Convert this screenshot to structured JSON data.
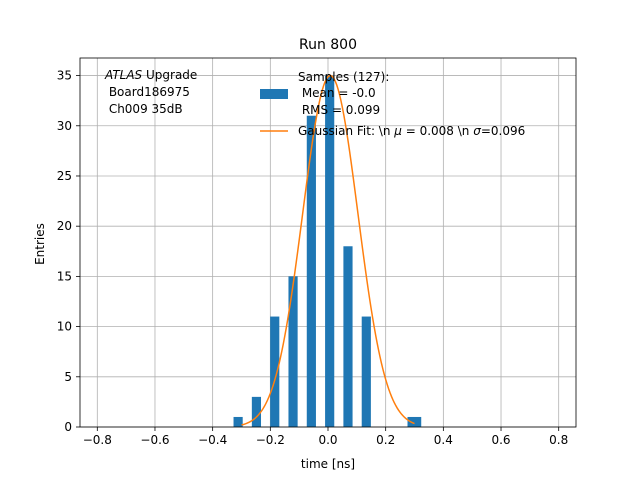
{
  "chart_data": {
    "type": "bar",
    "title": "Run 800",
    "xlabel": "time [ns]",
    "ylabel": "Entries",
    "xlim": [
      -0.86,
      0.86
    ],
    "ylim": [
      0,
      36.75
    ],
    "grid": true,
    "xticks": [
      -0.8,
      -0.6,
      -0.4,
      -0.2,
      0.0,
      0.2,
      0.4,
      0.6,
      0.8
    ],
    "xtick_labels": [
      "−0.8",
      "−0.6",
      "−0.4",
      "−0.2",
      "0.0",
      "0.2",
      "0.4",
      "0.6",
      "0.8"
    ],
    "yticks": [
      0,
      5,
      10,
      15,
      20,
      25,
      30,
      35
    ],
    "ytick_labels": [
      "0",
      "5",
      "10",
      "15",
      "20",
      "25",
      "30",
      "35"
    ],
    "bin_edges": [
      -0.3276,
      -0.2958,
      -0.2641,
      -0.2323,
      -0.2006,
      -0.1688,
      -0.1371,
      -0.1053,
      -0.0736,
      -0.0418,
      -0.0101,
      0.0217,
      0.0534,
      0.0852,
      0.1169,
      0.1487,
      0.1804,
      0.2122,
      0.2439,
      0.2757,
      0.3074
    ],
    "counts": [
      1,
      0,
      3,
      0,
      11,
      0,
      15,
      0,
      31,
      0,
      35,
      0,
      18,
      0,
      11,
      0,
      0,
      0,
      0,
      0
    ],
    "extra_bars": [
      {
        "x_start": 0.2757,
        "x_end": 0.3233,
        "value": 1
      }
    ],
    "bar_color": "#1f77b4",
    "fit": {
      "name": "Gaussian Fit: \\n μ = 0.008 \\n σ=0.096",
      "color": "#ff7f0e",
      "mu": 0.008,
      "sigma": 0.096,
      "amplitude": 35.0,
      "x_range": [
        -0.3,
        0.3
      ]
    },
    "legend": {
      "placement": "upper center",
      "hist_label_lines": [
        "Samples (127):",
        " Mean = -0.0",
        " RMS = 0.099"
      ],
      "fit_label": "Gaussian Fit: \\n μ = 0.008 \\n σ=0.096"
    },
    "annotation": {
      "lines": [
        "ATLAS Upgrade",
        " Board186975",
        " Ch009 35dB"
      ]
    }
  }
}
